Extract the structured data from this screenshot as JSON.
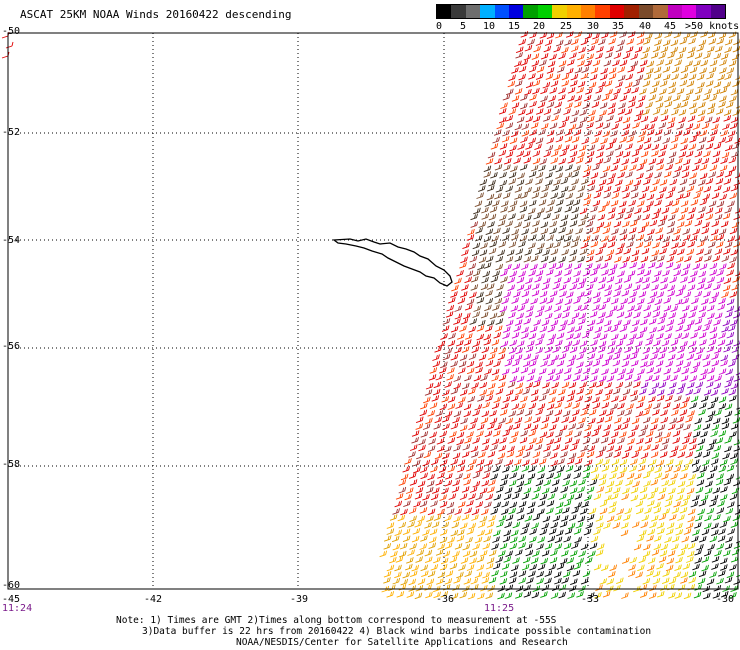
{
  "title": "ASCAT 25KM NOAA Winds 20160422 descending",
  "legend": {
    "colors": [
      "#000000",
      "#3a3a3a",
      "#6e6e6e",
      "#00b0ff",
      "#0050ff",
      "#0000e0",
      "#00a000",
      "#00d000",
      "#f0d000",
      "#ffb000",
      "#ff8000",
      "#ff4000",
      "#e00000",
      "#a02000",
      "#7a4a2a",
      "#b06a3a",
      "#c000c0",
      "#e000e0",
      "#8000c0",
      "#50008a"
    ],
    "ticks": [
      "0",
      "5",
      "10",
      "15",
      "20",
      "25",
      "30",
      "35",
      "40",
      "45",
      ">50 knots"
    ]
  },
  "axes": {
    "lat_labels": [
      "-50",
      "-52",
      "-54",
      "-56",
      "-58",
      "-60"
    ],
    "lon_labels": [
      "-45",
      "-42",
      "-39",
      "-36",
      "-33",
      "-30"
    ],
    "time_labels": [
      "11:24",
      "11:25"
    ]
  },
  "notes": {
    "line1": "Note: 1) Times are GMT 2)Times along bottom correspond to measurement at -55S",
    "line2": "3)Data buffer is 22 hrs from 20160422 4) Black wind barbs indicate possible contamination",
    "line3": "NOAA/NESDIS/Center for Satellite Applications and Research"
  },
  "icons": [
    "south-georgia-coastline-icon",
    "wind-barb-icon"
  ]
}
